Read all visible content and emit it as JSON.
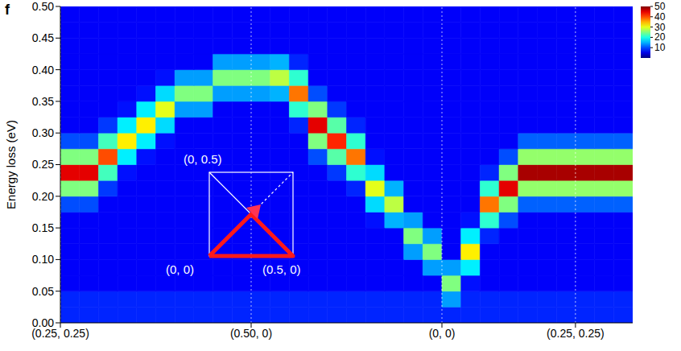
{
  "chart_data": {
    "type": "heatmap",
    "panel": "f",
    "y_label": "Energy loss (eV)",
    "xlim": [
      0,
      30
    ],
    "xticks": [
      {
        "value": 0,
        "label": "(0.25, 0.25)"
      },
      {
        "value": 10,
        "label": "(0.50, 0)"
      },
      {
        "value": 20,
        "label": "(0, 0)"
      },
      {
        "value": 27,
        "label": "(0.25, 0.25)"
      }
    ],
    "ylim": [
      0,
      0.5
    ],
    "yticks": [
      {
        "value": 0,
        "label": "0.00"
      },
      {
        "value": 0.05,
        "label": "0.05"
      },
      {
        "value": 0.1,
        "label": "0.10"
      },
      {
        "value": 0.15,
        "label": "0.15"
      },
      {
        "value": 0.2,
        "label": "0.20"
      },
      {
        "value": 0.25,
        "label": "0.25"
      },
      {
        "value": 0.3,
        "label": "0.30"
      },
      {
        "value": 0.35,
        "label": "0.35"
      },
      {
        "value": 0.4,
        "label": "0.40"
      },
      {
        "value": 0.45,
        "label": "0.45"
      },
      {
        "value": 0.5,
        "label": "0.50"
      }
    ],
    "grid": true,
    "xbins": [
      0,
      1,
      2,
      3,
      4,
      5,
      6,
      7,
      8,
      9,
      10,
      11,
      12,
      13,
      14,
      15,
      16,
      17,
      18,
      19,
      20,
      21,
      22,
      23,
      24,
      25,
      26,
      27,
      28,
      29,
      30
    ],
    "ybins": [
      0,
      0.025,
      0.05,
      0.075,
      0.1,
      0.125,
      0.15,
      0.175,
      0.2,
      0.225,
      0.25,
      0.275,
      0.3,
      0.325,
      0.35,
      0.375,
      0.4,
      0.425,
      0.45,
      0.475,
      0.5
    ],
    "z": [
      [
        8,
        8,
        8,
        8,
        8,
        8,
        8,
        8,
        8,
        8,
        8,
        8,
        8,
        8,
        8,
        8,
        8,
        8,
        8,
        8,
        8,
        8,
        8,
        8,
        8,
        8,
        8,
        8,
        8,
        8
      ],
      [
        8,
        8,
        8,
        8,
        8,
        8,
        8,
        8,
        8,
        8,
        8,
        8,
        8,
        8,
        8,
        8,
        8,
        8,
        8,
        8,
        14,
        8,
        8,
        8,
        8,
        8,
        8,
        8,
        8,
        8
      ],
      [
        6,
        6,
        6,
        6,
        6,
        6,
        6,
        6,
        6,
        6,
        6,
        6,
        6,
        6,
        6,
        6,
        6,
        6,
        6,
        6,
        25,
        7,
        6,
        6,
        6,
        6,
        6,
        6,
        6,
        6
      ],
      [
        6,
        6,
        6,
        6,
        6,
        6,
        6,
        6,
        6,
        6,
        6,
        6,
        6,
        6,
        6,
        6,
        6,
        6,
        6,
        14,
        14,
        18,
        6,
        6,
        6,
        6,
        6,
        6,
        6,
        6
      ],
      [
        6,
        6,
        6,
        6,
        6,
        6,
        6,
        6,
        6,
        6,
        6,
        6,
        6,
        6,
        6,
        6,
        6,
        6,
        14,
        25,
        6,
        32,
        6,
        6,
        6,
        6,
        6,
        6,
        6,
        6
      ],
      [
        6,
        6,
        6,
        6,
        6,
        6,
        6,
        6,
        6,
        6,
        6,
        6,
        6,
        6,
        6,
        6,
        6,
        6,
        25,
        14,
        6,
        18,
        8,
        6,
        6,
        6,
        6,
        6,
        6,
        6
      ],
      [
        6,
        6,
        6,
        6,
        6,
        6,
        6,
        6,
        6,
        6,
        6,
        6,
        6,
        6,
        6,
        6,
        7,
        15,
        14,
        6,
        6,
        7,
        21,
        10,
        6,
        6,
        6,
        6,
        6,
        6
      ],
      [
        10,
        10,
        6,
        6,
        6,
        6,
        6,
        6,
        6,
        6,
        6,
        6,
        6,
        6,
        6,
        6,
        17,
        28,
        6,
        6,
        6,
        6,
        38,
        25,
        11,
        11,
        11,
        11,
        11,
        11
      ],
      [
        25,
        25,
        9,
        6,
        6,
        6,
        6,
        6,
        6,
        6,
        6,
        6,
        6,
        6,
        6,
        8,
        30,
        15,
        6,
        6,
        6,
        6,
        21,
        45,
        26,
        26,
        26,
        26,
        26,
        26
      ],
      [
        45,
        45,
        22,
        7,
        6,
        6,
        6,
        6,
        6,
        6,
        6,
        6,
        6,
        6,
        9,
        21,
        17,
        6,
        6,
        6,
        6,
        6,
        8,
        25,
        48,
        48,
        48,
        48,
        48,
        48
      ],
      [
        25,
        25,
        40,
        18,
        7,
        6,
        6,
        6,
        6,
        6,
        6,
        6,
        6,
        10,
        23,
        38,
        7,
        6,
        6,
        6,
        6,
        6,
        6,
        10,
        26,
        26,
        26,
        26,
        26,
        26
      ],
      [
        10,
        10,
        22,
        32,
        18,
        7,
        6,
        6,
        6,
        6,
        6,
        6,
        6,
        25,
        42,
        21,
        6,
        6,
        6,
        6,
        6,
        6,
        6,
        6,
        11,
        11,
        11,
        11,
        11,
        11
      ],
      [
        6,
        6,
        9,
        18,
        32,
        17,
        6,
        6,
        6,
        6,
        6,
        6,
        8,
        45,
        23,
        8,
        6,
        6,
        6,
        6,
        6,
        6,
        6,
        6,
        6,
        6,
        6,
        6,
        6,
        6
      ],
      [
        6,
        6,
        6,
        7,
        18,
        30,
        14,
        14,
        6,
        6,
        6,
        6,
        21,
        25,
        9,
        6,
        6,
        6,
        6,
        6,
        6,
        6,
        6,
        6,
        6,
        6,
        6,
        6,
        6,
        6
      ],
      [
        6,
        6,
        6,
        6,
        7,
        17,
        25,
        25,
        14,
        14,
        14,
        15,
        38,
        10,
        6,
        6,
        6,
        6,
        6,
        6,
        6,
        6,
        6,
        6,
        6,
        6,
        6,
        6,
        6,
        6
      ],
      [
        6,
        6,
        6,
        6,
        6,
        7,
        14,
        14,
        25,
        25,
        25,
        28,
        21,
        6,
        6,
        6,
        6,
        6,
        6,
        6,
        6,
        6,
        6,
        6,
        6,
        6,
        6,
        6,
        6,
        6
      ],
      [
        6,
        6,
        6,
        6,
        6,
        6,
        6,
        6,
        14,
        14,
        14,
        15,
        8,
        6,
        6,
        6,
        6,
        6,
        6,
        6,
        6,
        6,
        6,
        6,
        6,
        6,
        6,
        6,
        6,
        6
      ],
      [
        6,
        6,
        6,
        6,
        6,
        6,
        6,
        6,
        6,
        6,
        6,
        6,
        6,
        6,
        6,
        6,
        6,
        6,
        6,
        6,
        6,
        6,
        6,
        6,
        6,
        6,
        6,
        6,
        6,
        6
      ],
      [
        6,
        6,
        6,
        6,
        6,
        6,
        6,
        6,
        6,
        6,
        6,
        6,
        6,
        6,
        6,
        6,
        6,
        6,
        6,
        6,
        6,
        6,
        6,
        6,
        6,
        6,
        6,
        6,
        6,
        6
      ],
      [
        6,
        6,
        6,
        6,
        6,
        6,
        6,
        6,
        6,
        6,
        6,
        6,
        6,
        6,
        6,
        6,
        6,
        6,
        6,
        6,
        6,
        6,
        6,
        6,
        6,
        6,
        6,
        6,
        6,
        6
      ]
    ],
    "colorbar": {
      "range": [
        0,
        50
      ],
      "ticks": [
        10,
        20,
        30,
        40,
        50
      ]
    },
    "annotations": [
      "(0, 0.5)",
      "(0, 0)",
      "(0.5, 0)"
    ]
  }
}
